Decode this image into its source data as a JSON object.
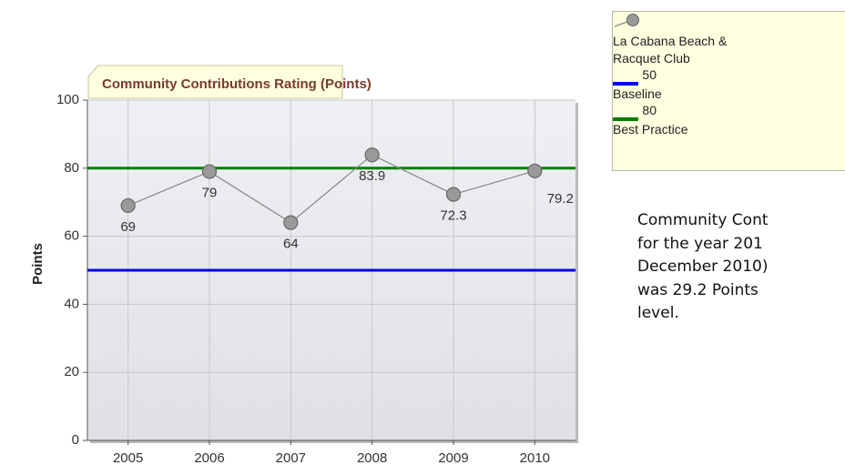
{
  "chart_data": {
    "type": "line",
    "title": "Community Contributions Rating (Points)",
    "y_label": "Points",
    "categories": [
      "2005",
      "2006",
      "2007",
      "2008",
      "2009",
      "2010"
    ],
    "series": [
      {
        "name": "La Cabana Beach & Racquet Club",
        "color": "#888888",
        "values": [
          69,
          79,
          64,
          83.9,
          72.3,
          79.2
        ]
      }
    ],
    "reference_lines": [
      {
        "name": "Baseline",
        "value": 50,
        "color": "#0000ee"
      },
      {
        "name": "Best Practice",
        "value": 80,
        "color": "#008000"
      }
    ],
    "ylim": [
      0,
      100
    ],
    "yticks": [
      0,
      20,
      40,
      60,
      80,
      100
    ],
    "grid": true,
    "legend": "top-right"
  },
  "text": {
    "lines": [
      "Community Cont",
      "for the year 201",
      "December 2010)",
      "was 29.2 Points",
      "level."
    ]
  }
}
